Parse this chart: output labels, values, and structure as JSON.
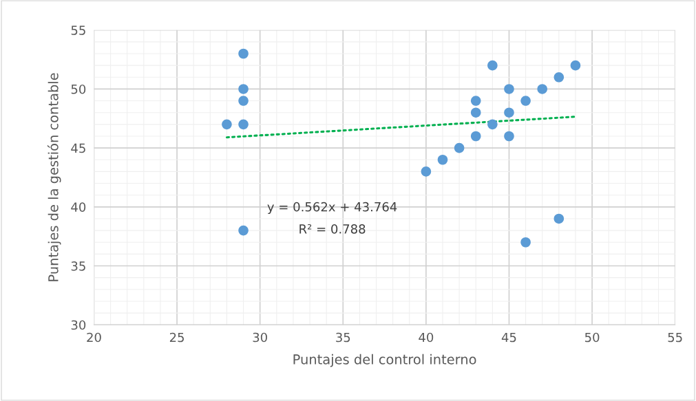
{
  "chart_data": {
    "type": "scatter",
    "xlabel": "Puntajes del control interno",
    "ylabel": "Puntajes de la gestión contable",
    "xlim": [
      20,
      55
    ],
    "xticks": [
      20,
      25,
      30,
      35,
      40,
      45,
      50,
      55
    ],
    "ylim": [
      30,
      55
    ],
    "yticks": [
      30,
      35,
      40,
      45,
      50,
      55
    ],
    "grid": true,
    "series": [
      {
        "marker": "circle",
        "color": "#5b9bd5",
        "x": [
          29,
          29,
          29,
          28,
          29,
          29,
          40,
          41,
          42,
          43,
          43,
          43,
          44,
          44,
          45,
          45,
          45,
          46,
          46,
          47,
          48,
          48,
          49
        ],
        "values": [
          53,
          50,
          49,
          47,
          47,
          38,
          43,
          44,
          45,
          46,
          48,
          49,
          47,
          52,
          50,
          48,
          46,
          49,
          37,
          50,
          51,
          39,
          52
        ]
      },
      {
        "type": "line",
        "color": "#00b050",
        "line_style": "dotted",
        "x": [
          28,
          49
        ],
        "values": [
          45.9,
          47.65
        ]
      }
    ],
    "annotations": [
      "y = 0.562x + 43.764",
      "R² = 0.788"
    ]
  }
}
